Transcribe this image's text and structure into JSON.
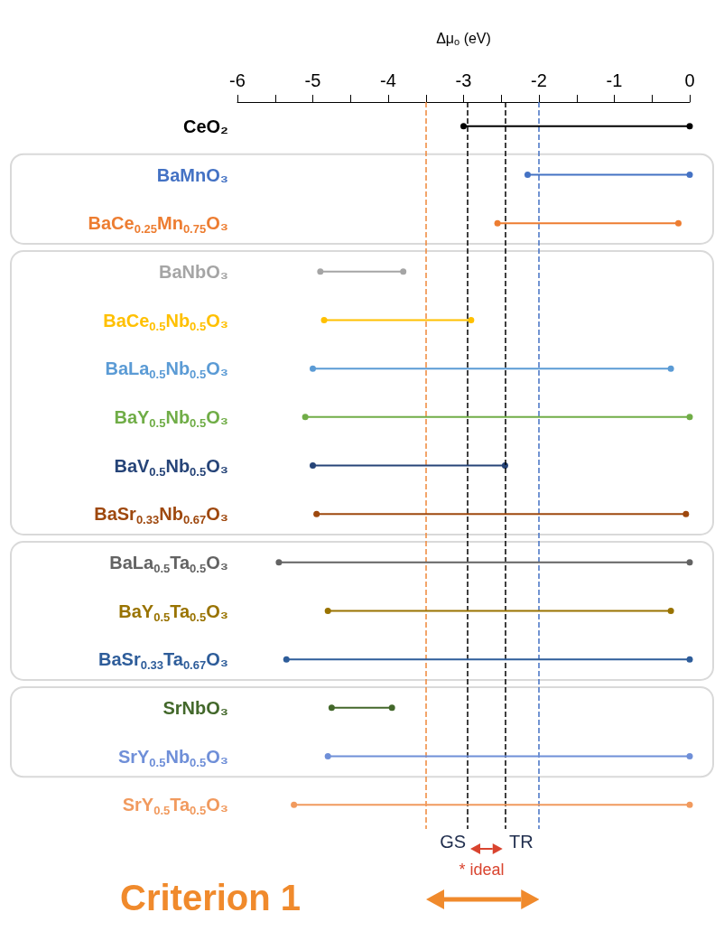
{
  "chart_data": {
    "type": "bar",
    "orientation": "horizontal",
    "xlabel": "Δμ$_{o}$ (eV)",
    "categories": [
      "CeO₂",
      "BaMnO₃",
      "BaCe$_{0.25}$Mn$_{0.75}$O₃",
      "BaNbO₃",
      "BaCe$_{0.5}$Nb$_{0.5}$O₃",
      "BaLa$_{0.5}$Nb$_{0.5}$O₃",
      "BaY$_{0.5}$Nb$_{0.5}$O₃",
      "BaV$_{0.5}$Nb$_{0.5}$O₃",
      "BaSr$_{0.33}$Nb$_{0.67}$O₃",
      "BaLa$_{0.5}$Ta$_{0.5}$O₃",
      "BaY$_{0.5}$Ta$_{0.5}$O₃",
      "BaSr$_{0.33}$Ta$_{0.67}$O₃",
      "SrNbO₃",
      "SrY$_{0.5}$Nb$_{0.5}$O₃",
      "SrY$_{0.5}$Ta$_{0.5}$O₃"
    ],
    "base": [
      -3.0,
      -2.15,
      -2.55,
      -4.9,
      -4.85,
      -5.0,
      -5.1,
      -5.0,
      -4.95,
      -5.45,
      -4.8,
      -5.35,
      -4.75,
      -4.8,
      -5.25
    ],
    "values": [
      3.0,
      2.15,
      2.4,
      1.1,
      1.95,
      4.75,
      5.1,
      2.55,
      4.9,
      5.45,
      4.55,
      5.35,
      0.8,
      4.8,
      5.25
    ],
    "colors": [
      "#000000",
      "#4472c4",
      "#ed7d31",
      "#a5a5a5",
      "#ffc000",
      "#5b9bd5",
      "#70ad47",
      "#264478",
      "#9e480e",
      "#636363",
      "#997300",
      "#2e5d9a",
      "#43682b",
      "#6f8fd8",
      "#f19a5e"
    ],
    "xlim": [
      -6,
      0
    ],
    "xticks": [
      -6,
      {
        "value": -5.5,
        "label": null
      },
      -5,
      {
        "value": -4.5,
        "label": null
      },
      -4,
      {
        "value": -3.5,
        "label": null
      },
      -3,
      {
        "value": -2.5,
        "label": null
      },
      -2,
      {
        "value": -1.5,
        "label": null
      },
      -1,
      {
        "value": -0.5,
        "label": null
      },
      0
    ],
    "marker": "circle",
    "grid": false,
    "ref_lines": [
      {
        "axis": "x",
        "value": -3.5,
        "label": null,
        "color": "#f0883a",
        "line_style": "dashed"
      },
      {
        "axis": "x",
        "value": -2.95,
        "label": "GS",
        "color": "#000000",
        "line_style": "dashed"
      },
      {
        "axis": "x",
        "value": -2.45,
        "label": "TR",
        "color": "#000000",
        "line_style": "dashed"
      },
      {
        "axis": "x",
        "value": -2.0,
        "label": null,
        "color": "#4472c4",
        "line_style": "dashed"
      }
    ],
    "annotations": [
      "* ideal",
      "Criterion 1"
    ]
  }
}
